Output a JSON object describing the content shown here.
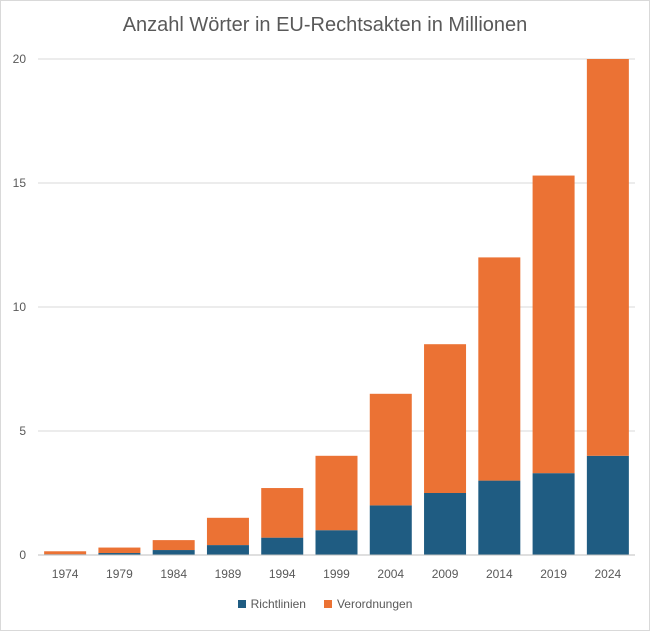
{
  "chart_data": {
    "type": "bar",
    "stacked": true,
    "title": "Anzahl Wörter in EU-Rechtsakten in Millionen",
    "xlabel": "",
    "ylabel": "",
    "categories": [
      "1974",
      "1979",
      "1984",
      "1989",
      "1994",
      "1999",
      "2004",
      "2009",
      "2014",
      "2019",
      "2024"
    ],
    "series": [
      {
        "name": "Richtlinien",
        "color": "#1f5c82",
        "values": [
          0.03,
          0.08,
          0.2,
          0.4,
          0.7,
          1.0,
          2.0,
          2.5,
          3.0,
          3.3,
          4.0
        ]
      },
      {
        "name": "Verordnungen",
        "color": "#eb7234",
        "values": [
          0.12,
          0.22,
          0.4,
          1.1,
          2.0,
          3.0,
          4.5,
          6.0,
          9.0,
          12.0,
          16.0
        ]
      }
    ],
    "ylim": [
      0,
      20
    ],
    "yticks": [
      "0",
      "5",
      "10",
      "15",
      "20"
    ],
    "grid": true,
    "legend_position": "bottom"
  }
}
